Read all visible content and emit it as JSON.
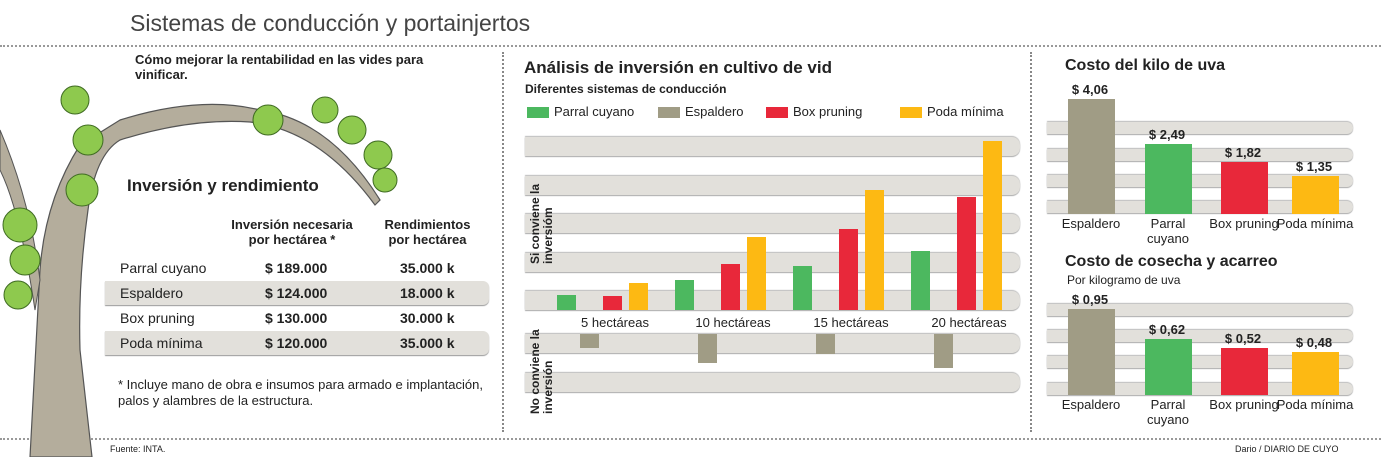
{
  "header": {
    "title": "Sistemas de conducción y portainjertos"
  },
  "left": {
    "intro": "Cómo mejorar la rentabilidad en las vides para vinificar.",
    "heading": "Inversión y rendimiento",
    "col1": "Inversión necesaria por hectárea *",
    "col2": "Rendimientos por hectárea",
    "rows": [
      {
        "system": "Parral cuyano",
        "investment": "$ 189.000",
        "yield": "35.000 k"
      },
      {
        "system": "Espaldero",
        "investment": "$ 124.000",
        "yield": "18.000 k"
      },
      {
        "system": "Box pruning",
        "investment": "$ 130.000",
        "yield": "30.000 k"
      },
      {
        "system": "Poda mínima",
        "investment": "$ 120.000",
        "yield": "35.000 k"
      }
    ],
    "footnote": "* Incluye mano de obra e insumos para armado e implantación, palos y alambres de la estructura."
  },
  "footer": {
    "source": "Fuente: INTA.",
    "credit": "Dario / DIARIO DE CUYO"
  },
  "colors": {
    "Parral cuyano": "#4cb85f",
    "Espaldero": "#a09c85",
    "Box pruning": "#e8283a",
    "Poda mínima": "#fdb913"
  },
  "chart_data": [
    {
      "type": "bar",
      "title": "Análisis de inversión en cultivo de vid",
      "subtitle": "Diferentes sistemas de conducción",
      "categories": [
        "5 hectáreas",
        "10 hectáreas",
        "15 hectáreas",
        "20 hectáreas"
      ],
      "ylabel_positive": "Si conviene la inversióm",
      "ylabel_negative": "No conviene la inversión",
      "legend": "top",
      "ylim": [
        -30,
        100
      ],
      "series": [
        {
          "name": "Parral cuyano",
          "values": [
            9,
            18,
            26,
            35
          ]
        },
        {
          "name": "Espaldero",
          "values": [
            -8,
            -17,
            -12,
            -20
          ]
        },
        {
          "name": "Box pruning",
          "values": [
            8,
            27,
            48,
            67
          ]
        },
        {
          "name": "Poda mínima",
          "values": [
            16,
            43,
            71,
            100
          ]
        }
      ]
    },
    {
      "type": "bar",
      "title": "Costo del kilo de uva",
      "categories": [
        "Espaldero",
        "Parral cuyano",
        "Box pruning",
        "Poda mínima"
      ],
      "values": [
        4.06,
        2.49,
        1.82,
        1.35
      ],
      "labels": [
        "$ 4,06",
        "$ 2,49",
        "$ 1,82",
        "$ 1,35"
      ]
    },
    {
      "type": "bar",
      "title": "Costo de cosecha y acarreo",
      "subtitle": "Por kilogramo de uva",
      "categories": [
        "Espaldero",
        "Parral cuyano",
        "Box pruning",
        "Poda mínima"
      ],
      "values": [
        0.95,
        0.62,
        0.52,
        0.48
      ],
      "labels": [
        "$ 0,95",
        "$ 0,62",
        "$ 0,52",
        "$ 0,48"
      ]
    }
  ]
}
